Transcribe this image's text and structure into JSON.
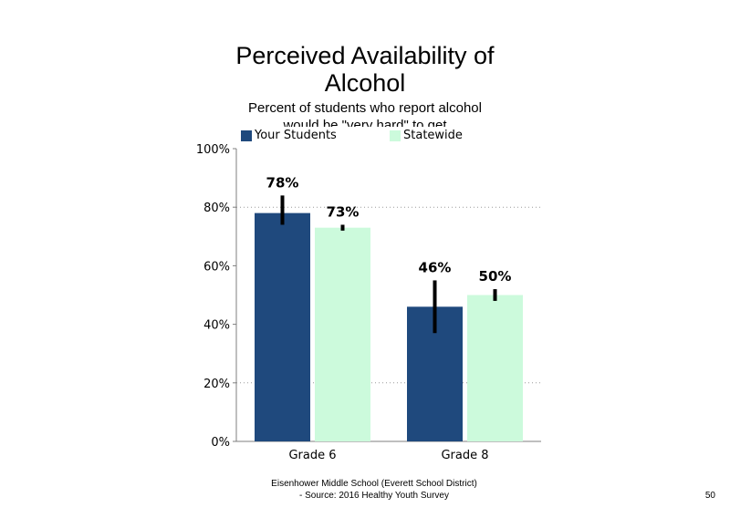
{
  "chart_data": {
    "type": "bar",
    "title_lines": [
      "Perceived Availability of",
      "Alcohol"
    ],
    "subtitle_lines": [
      "Percent of students  who report alcohol",
      "would be \"very hard\" to get"
    ],
    "categories": [
      "Grade 6",
      "Grade 8"
    ],
    "series": [
      {
        "name": "Your Students",
        "color": "#1f497d",
        "values": [
          78,
          46
        ],
        "value_labels": [
          "78%",
          "46%"
        ],
        "error_low": [
          74,
          37
        ],
        "error_high": [
          84,
          55
        ]
      },
      {
        "name": "Statewide",
        "color": "#ccfadc",
        "values": [
          73,
          50
        ],
        "value_labels": [
          "73%",
          "50%"
        ],
        "error_low": [
          72,
          48
        ],
        "error_high": [
          74,
          52
        ]
      }
    ],
    "ylim": [
      0,
      100
    ],
    "yticks": [
      0,
      20,
      40,
      60,
      80,
      100
    ],
    "ytick_labels": [
      "0%",
      "20%",
      "40%",
      "60%",
      "80%",
      "100%"
    ],
    "gridlines": [
      20,
      80
    ],
    "grid": "dotted",
    "legend_position": "top"
  },
  "footer": {
    "line1": "Eisenhower Middle School (Everett School District)",
    "line2": "- Source: 2016 Healthy  Youth Survey"
  },
  "page_number": "50"
}
